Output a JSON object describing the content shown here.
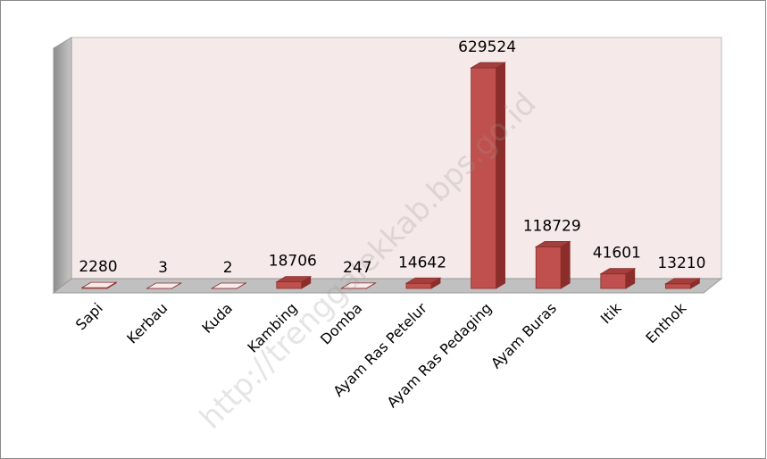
{
  "chart_data": {
    "type": "bar3d",
    "categories": [
      "Sapi",
      "Kerbau",
      "Kuda",
      "Kambing",
      "Domba",
      "Ayam Ras Petelur",
      "Ayam Ras Pedaging",
      "Ayam Buras",
      "Itik",
      "Enthok"
    ],
    "values": [
      2280,
      3,
      2,
      18706,
      247,
      14642,
      629524,
      118729,
      41601,
      13210
    ],
    "color": "#c0504d",
    "watermark": "http://trenggalekkab.bps.go.id"
  }
}
